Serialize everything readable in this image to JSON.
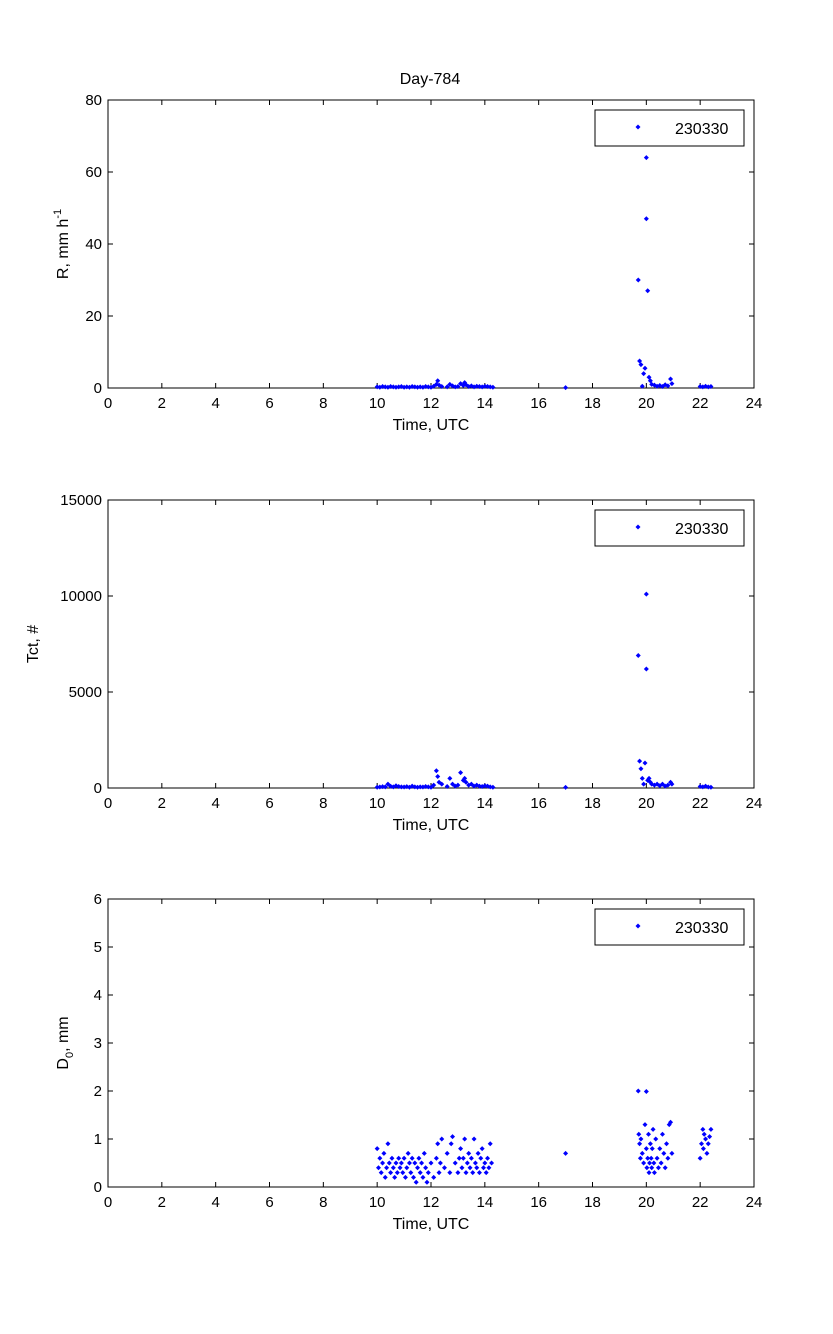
{
  "figure": {
    "title": "Day-784"
  },
  "colors": {
    "series": "#0000ff",
    "axis": "#000000",
    "background": "#ffffff"
  },
  "chart_data": [
    {
      "type": "scatter",
      "title": "Day-784",
      "xlabel": "Time, UTC",
      "ylabel": "R, mm h",
      "ylabel_sup": "-1",
      "xlim": [
        0,
        24
      ],
      "ylim": [
        0,
        80
      ],
      "xticks": [
        0,
        2,
        4,
        6,
        8,
        10,
        12,
        14,
        16,
        18,
        20,
        22,
        24
      ],
      "yticks": [
        0,
        20,
        40,
        60,
        80
      ],
      "grid": false,
      "legend": "top-right",
      "series": [
        {
          "name": "230330",
          "x": [
            10.0,
            10.1,
            10.2,
            10.3,
            10.4,
            10.5,
            10.6,
            10.7,
            10.8,
            10.9,
            11.0,
            11.1,
            11.2,
            11.3,
            11.4,
            11.5,
            11.6,
            11.7,
            11.8,
            11.9,
            12.0,
            12.1,
            12.2,
            12.25,
            12.3,
            12.4,
            12.6,
            12.7,
            12.8,
            12.9,
            13.0,
            13.1,
            13.2,
            13.25,
            13.3,
            13.4,
            13.5,
            13.6,
            13.7,
            13.8,
            13.9,
            14.0,
            14.1,
            14.2,
            14.3,
            17.0,
            19.7,
            19.75,
            19.8,
            19.85,
            19.9,
            19.95,
            20.0,
            20.0,
            20.05,
            20.1,
            20.15,
            20.2,
            20.3,
            20.4,
            20.5,
            20.6,
            20.7,
            20.8,
            20.9,
            20.95,
            22.0,
            22.1,
            22.2,
            22.3,
            22.4
          ],
          "y": [
            0.3,
            0.2,
            0.4,
            0.3,
            0.2,
            0.4,
            0.3,
            0.2,
            0.3,
            0.4,
            0.2,
            0.3,
            0.2,
            0.4,
            0.3,
            0.2,
            0.3,
            0.2,
            0.4,
            0.3,
            0.2,
            0.5,
            1.0,
            2.0,
            0.8,
            0.4,
            0.3,
            1.0,
            0.6,
            0.3,
            0.4,
            1.2,
            0.7,
            1.5,
            0.9,
            0.4,
            0.6,
            0.3,
            0.5,
            0.4,
            0.3,
            0.5,
            0.4,
            0.3,
            0.2,
            0.1,
            30.0,
            7.5,
            6.5,
            0.5,
            4.0,
            5.5,
            64.0,
            47.0,
            27.0,
            3.0,
            2.0,
            1.0,
            0.8,
            0.5,
            0.7,
            0.4,
            0.9,
            0.6,
            2.5,
            1.2,
            0.4,
            0.3,
            0.5,
            0.3,
            0.4
          ]
        }
      ]
    },
    {
      "type": "scatter",
      "title": "",
      "xlabel": "Time, UTC",
      "ylabel": "Tct, #",
      "xlim": [
        0,
        24
      ],
      "ylim": [
        0,
        15000
      ],
      "xticks": [
        0,
        2,
        4,
        6,
        8,
        10,
        12,
        14,
        16,
        18,
        20,
        22,
        24
      ],
      "yticks": [
        0,
        5000,
        10000,
        15000
      ],
      "grid": false,
      "legend": "top-right",
      "series": [
        {
          "name": "230330",
          "x": [
            10.0,
            10.1,
            10.2,
            10.3,
            10.4,
            10.5,
            10.6,
            10.7,
            10.8,
            10.9,
            11.0,
            11.1,
            11.2,
            11.3,
            11.4,
            11.5,
            11.6,
            11.7,
            11.8,
            11.9,
            12.0,
            12.1,
            12.2,
            12.25,
            12.3,
            12.4,
            12.6,
            12.7,
            12.8,
            12.9,
            13.0,
            13.1,
            13.2,
            13.25,
            13.3,
            13.4,
            13.5,
            13.6,
            13.7,
            13.8,
            13.9,
            14.0,
            14.1,
            14.2,
            14.3,
            17.0,
            19.7,
            19.75,
            19.8,
            19.85,
            19.9,
            19.95,
            20.0,
            20.0,
            20.05,
            20.1,
            20.15,
            20.2,
            20.3,
            20.4,
            20.5,
            20.6,
            20.7,
            20.8,
            20.9,
            20.95,
            22.0,
            22.1,
            22.2,
            22.3,
            22.4
          ],
          "y": [
            40,
            50,
            70,
            60,
            200,
            90,
            60,
            120,
            80,
            60,
            50,
            70,
            40,
            100,
            60,
            40,
            60,
            50,
            80,
            60,
            40,
            150,
            900,
            600,
            300,
            200,
            80,
            500,
            200,
            100,
            150,
            800,
            400,
            500,
            300,
            150,
            200,
            100,
            150,
            100,
            80,
            120,
            100,
            60,
            40,
            30,
            6900,
            1400,
            1000,
            500,
            200,
            1300,
            10100,
            6200,
            400,
            500,
            300,
            200,
            150,
            200,
            120,
            200,
            100,
            150,
            300,
            200,
            80,
            60,
            100,
            50,
            40
          ]
        }
      ]
    },
    {
      "type": "scatter",
      "title": "",
      "xlabel": "Time, UTC",
      "ylabel": "D",
      "ylabel_sub": "0",
      "ylabel_suffix": ", mm",
      "xlim": [
        0,
        24
      ],
      "ylim": [
        0,
        6
      ],
      "xticks": [
        0,
        2,
        4,
        6,
        8,
        10,
        12,
        14,
        16,
        18,
        20,
        22,
        24
      ],
      "yticks": [
        0,
        1,
        2,
        3,
        4,
        5,
        6
      ],
      "grid": false,
      "legend": "top-right",
      "series": [
        {
          "name": "230330",
          "x": [
            10.0,
            10.05,
            10.1,
            10.15,
            10.2,
            10.25,
            10.3,
            10.35,
            10.4,
            10.45,
            10.5,
            10.55,
            10.6,
            10.65,
            10.7,
            10.75,
            10.8,
            10.85,
            10.9,
            10.95,
            11.0,
            11.05,
            11.1,
            11.15,
            11.2,
            11.25,
            11.3,
            11.35,
            11.4,
            11.45,
            11.5,
            11.55,
            11.6,
            11.65,
            11.7,
            11.75,
            11.8,
            11.85,
            11.9,
            12.0,
            12.1,
            12.2,
            12.25,
            12.3,
            12.35,
            12.4,
            12.5,
            12.6,
            12.7,
            12.75,
            12.8,
            12.9,
            13.0,
            13.05,
            13.1,
            13.15,
            13.2,
            13.25,
            13.3,
            13.35,
            13.4,
            13.45,
            13.5,
            13.55,
            13.6,
            13.65,
            13.7,
            13.75,
            13.8,
            13.85,
            13.9,
            13.95,
            14.0,
            14.05,
            14.1,
            14.15,
            14.2,
            14.25,
            17.0,
            19.7,
            19.72,
            19.75,
            19.78,
            19.8,
            19.85,
            19.9,
            19.95,
            20.0,
            20.0,
            20.02,
            20.05,
            20.08,
            20.1,
            20.12,
            20.15,
            20.18,
            20.2,
            20.22,
            20.25,
            20.28,
            20.3,
            20.35,
            20.4,
            20.45,
            20.5,
            20.55,
            20.6,
            20.65,
            20.7,
            20.75,
            20.8,
            20.85,
            20.9,
            20.95,
            22.0,
            22.05,
            22.1,
            22.12,
            22.15,
            22.2,
            22.25,
            22.3,
            22.35,
            22.4
          ],
          "y": [
            0.8,
            0.4,
            0.6,
            0.3,
            0.5,
            0.7,
            0.2,
            0.4,
            0.9,
            0.5,
            0.3,
            0.6,
            0.4,
            0.2,
            0.5,
            0.3,
            0.6,
            0.4,
            0.5,
            0.3,
            0.6,
            0.2,
            0.4,
            0.7,
            0.5,
            0.3,
            0.6,
            0.2,
            0.5,
            0.1,
            0.4,
            0.6,
            0.3,
            0.5,
            0.2,
            0.7,
            0.4,
            0.1,
            0.3,
            0.5,
            0.2,
            0.6,
            0.9,
            0.3,
            0.5,
            1.0,
            0.4,
            0.7,
            0.3,
            0.9,
            1.05,
            0.5,
            0.3,
            0.6,
            0.8,
            0.4,
            0.6,
            1.0,
            0.3,
            0.5,
            0.7,
            0.4,
            0.6,
            0.3,
            1.0,
            0.5,
            0.4,
            0.7,
            0.3,
            0.6,
            0.8,
            0.4,
            0.5,
            0.3,
            0.6,
            0.4,
            0.9,
            0.5,
            0.7,
            2.0,
            1.1,
            0.9,
            0.6,
            1.0,
            0.7,
            0.5,
            1.3,
            1.99,
            0.8,
            0.4,
            0.6,
            1.1,
            0.3,
            0.5,
            0.9,
            0.6,
            0.4,
            0.8,
            1.2,
            0.5,
            0.3,
            1.0,
            0.6,
            0.4,
            0.8,
            0.5,
            1.1,
            0.7,
            0.4,
            0.9,
            0.6,
            1.3,
            1.35,
            0.7,
            0.6,
            0.9,
            1.2,
            0.8,
            1.1,
            1.0,
            0.7,
            0.9,
            1.05,
            1.2
          ]
        }
      ]
    }
  ]
}
